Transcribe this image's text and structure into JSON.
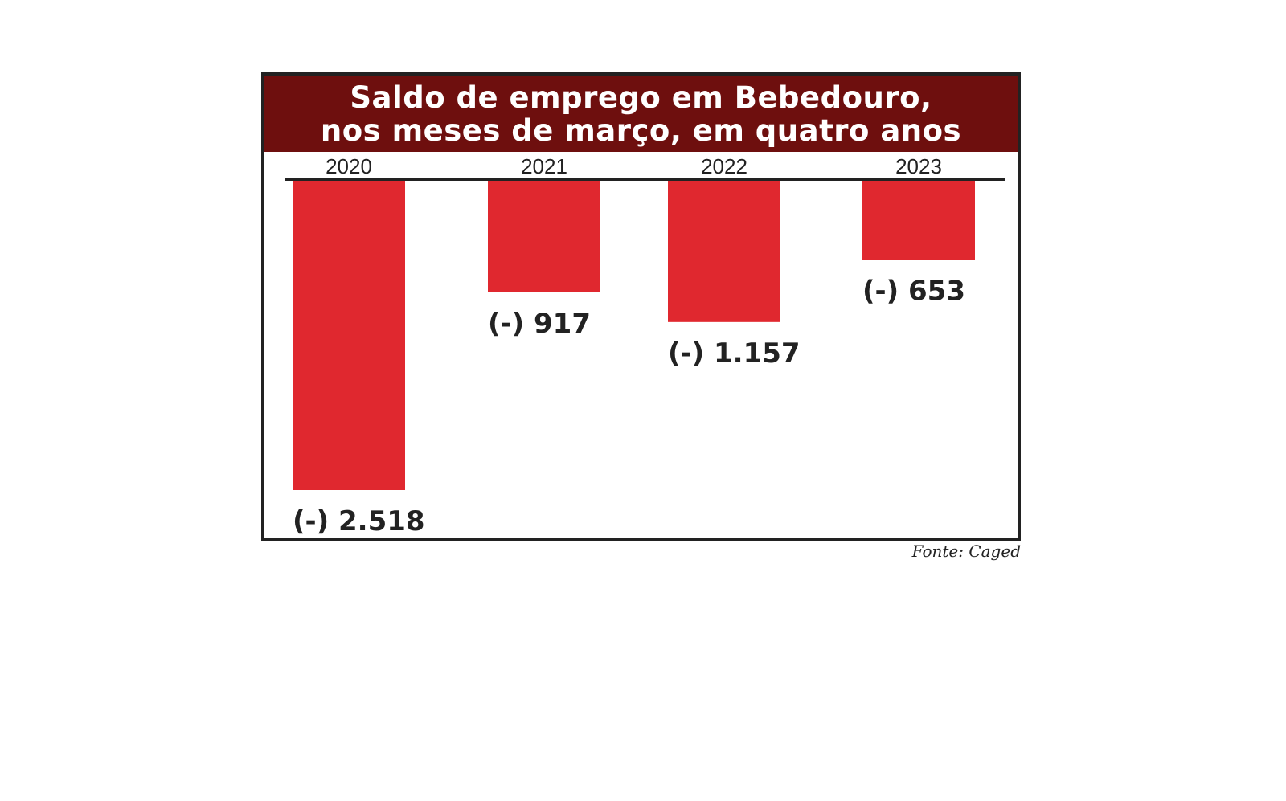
{
  "chart_data": {
    "type": "bar",
    "title": "Saldo de emprego em Bebedouro,",
    "subtitle": "nos meses de março, em quatro anos",
    "categories": [
      "2020",
      "2021",
      "2022",
      "2023"
    ],
    "values": [
      -2518,
      -917,
      -1157,
      -653
    ],
    "value_labels": [
      "(-) 2.518",
      "(-) 917",
      "(-) 1.157",
      "(-) 653"
    ],
    "xlabel": "",
    "ylabel": "",
    "ylim": [
      -2518,
      0
    ],
    "grid": false,
    "legend": "none"
  },
  "colors": {
    "title_bar": "#6e0f0e",
    "bar": "#e0282f",
    "axis": "#222222",
    "label_text": "#222222"
  },
  "source": "Fonte: Caged"
}
